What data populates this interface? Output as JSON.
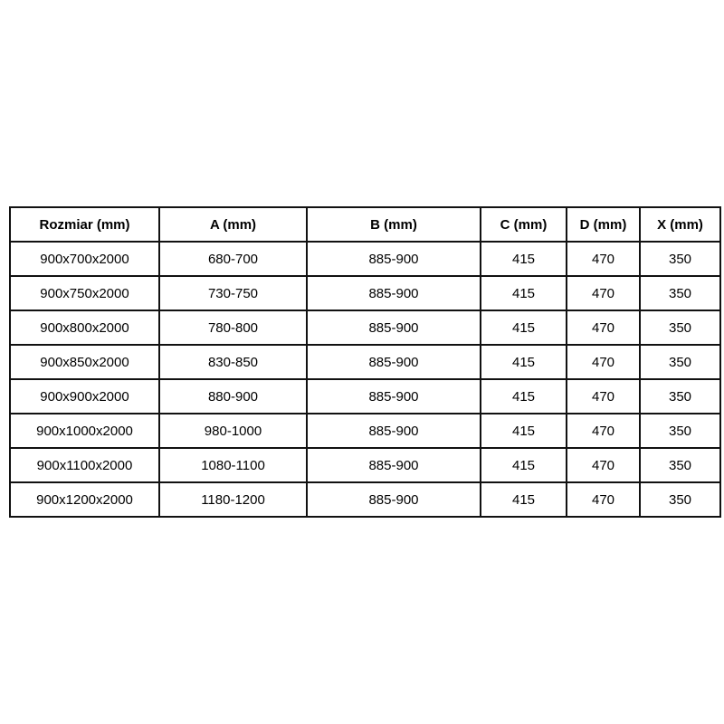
{
  "style": {
    "border_color": "#111111",
    "text_color": "#000000",
    "background_color": "#ffffff"
  },
  "chart_data": {
    "type": "table",
    "title": "",
    "columns": [
      "Rozmiar (mm)",
      "A (mm)",
      "B (mm)",
      "C (mm)",
      "D (mm)",
      "X (mm)"
    ],
    "rows": [
      [
        "900x700x2000",
        "680-700",
        "885-900",
        "415",
        "470",
        "350"
      ],
      [
        "900x750x2000",
        "730-750",
        "885-900",
        "415",
        "470",
        "350"
      ],
      [
        "900x800x2000",
        "780-800",
        "885-900",
        "415",
        "470",
        "350"
      ],
      [
        "900x850x2000",
        "830-850",
        "885-900",
        "415",
        "470",
        "350"
      ],
      [
        "900x900x2000",
        "880-900",
        "885-900",
        "415",
        "470",
        "350"
      ],
      [
        "900x1000x2000",
        "980-1000",
        "885-900",
        "415",
        "470",
        "350"
      ],
      [
        "900x1100x2000",
        "1080-1100",
        "885-900",
        "415",
        "470",
        "350"
      ],
      [
        "900x1200x2000",
        "1180-1200",
        "885-900",
        "415",
        "470",
        "350"
      ]
    ]
  }
}
